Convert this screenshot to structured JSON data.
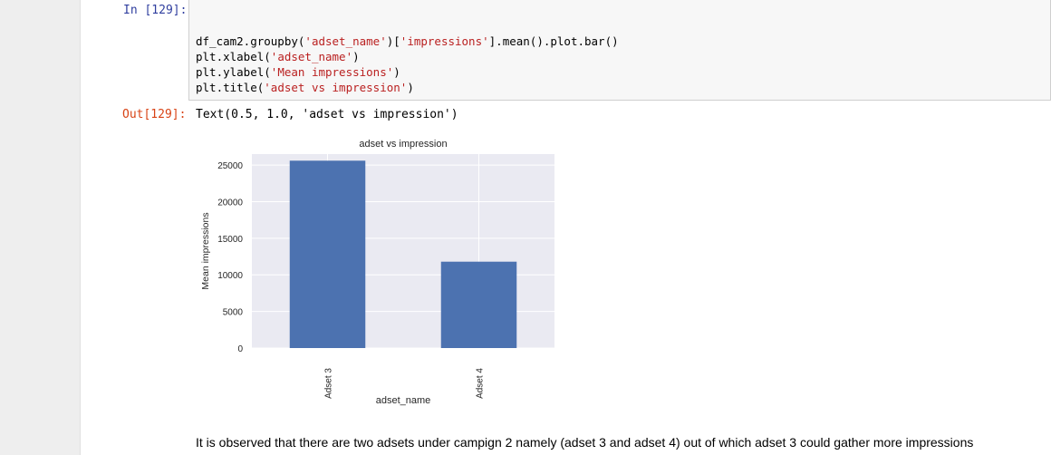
{
  "cell_in": {
    "prompt": "In [129]:",
    "code": [
      {
        "parts": [
          {
            "t": "df_cam2.groupby("
          },
          {
            "t": "'adset_name'",
            "s": 1
          },
          {
            "t": ")["
          },
          {
            "t": "'impressions'",
            "s": 1
          },
          {
            "t": "].mean().plot.bar()"
          }
        ]
      },
      {
        "parts": [
          {
            "t": "plt.xlabel("
          },
          {
            "t": "'adset_name'",
            "s": 1
          },
          {
            "t": ")"
          }
        ]
      },
      {
        "parts": [
          {
            "t": "plt.ylabel("
          },
          {
            "t": "'Mean impressions'",
            "s": 1
          },
          {
            "t": ")"
          }
        ]
      },
      {
        "parts": [
          {
            "t": "plt.title("
          },
          {
            "t": "'adset vs impression'",
            "s": 1
          },
          {
            "t": ")"
          }
        ]
      }
    ]
  },
  "cell_out": {
    "prompt": "Out[129]:",
    "text": "Text(0.5, 1.0, 'adset vs impression')"
  },
  "chart_data": {
    "type": "bar",
    "title": "adset vs impression",
    "xlabel": "adset_name",
    "ylabel": "Mean impressions",
    "categories": [
      "Adset 3",
      "Adset 4"
    ],
    "values": [
      25600,
      11800
    ],
    "ylim": [
      0,
      26500
    ],
    "yticks": [
      0,
      5000,
      10000,
      15000,
      20000,
      25000
    ],
    "grid": true,
    "bar_color": "#4c72b0",
    "bg_color": "#eaeaf2"
  },
  "markdown": {
    "text": "It is observed that there are two adsets under campign 2 namely (adset 3 and adset 4) out of which adset 3 could gather more impressions"
  }
}
